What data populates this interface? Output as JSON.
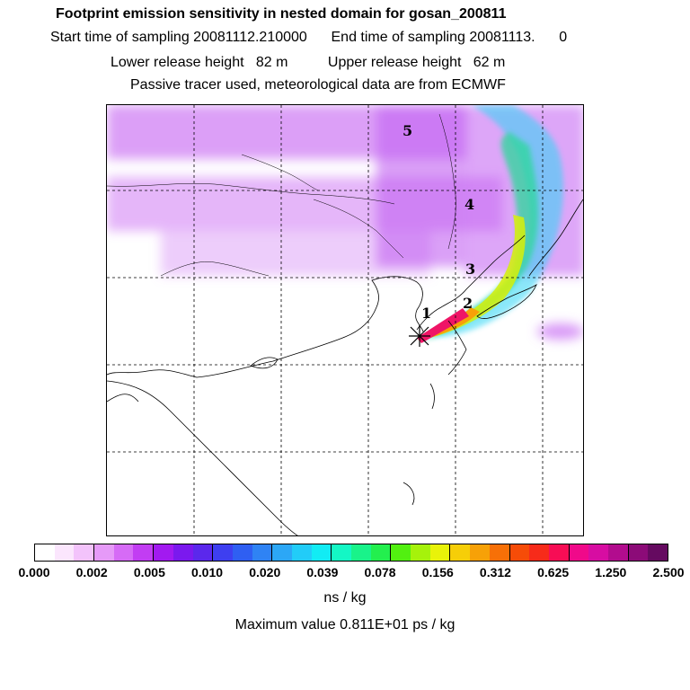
{
  "header": {
    "title": "Footprint emission sensitivity in nested domain for gosan_200811",
    "sampling_line": "Start time of sampling 20081112.210000      End time of sampling 20081113.      0",
    "release_line": "Lower release height   82 m          Upper release height   62 m",
    "tracer_line": "Passive tracer used, meteorological data are from ECMWF"
  },
  "map": {
    "trajectory_labels": [
      "1",
      "2",
      "3",
      "4",
      "5"
    ],
    "release_marker": "receptor-star-icon"
  },
  "colorbar": {
    "colors": [
      "#ffffff",
      "#fbe6fd",
      "#f3c3fb",
      "#e69af8",
      "#d66bf6",
      "#c23df3",
      "#a21af0",
      "#7b19ee",
      "#5b28ec",
      "#3e3ff0",
      "#2f5ff2",
      "#2f83f4",
      "#2ca7f6",
      "#22ccf8",
      "#12ecf4",
      "#14f7c5",
      "#19f38a",
      "#23ef4e",
      "#52f010",
      "#a6f20b",
      "#e9f309",
      "#f6ce08",
      "#f7a107",
      "#f77007",
      "#f64c08",
      "#f72b1a",
      "#f70d55",
      "#f0098a",
      "#d70da2",
      "#b20c8e",
      "#8c0b78",
      "#650a60"
    ],
    "tick_labels": [
      "0.000",
      "0.002",
      "0.005",
      "0.010",
      "0.020",
      "0.039",
      "0.078",
      "0.156",
      "0.312",
      "0.625",
      "1.250",
      "2.500"
    ]
  },
  "footer": {
    "unit_label": "ns / kg",
    "max_value": "Maximum value  0.811E+01 ps / kg"
  }
}
